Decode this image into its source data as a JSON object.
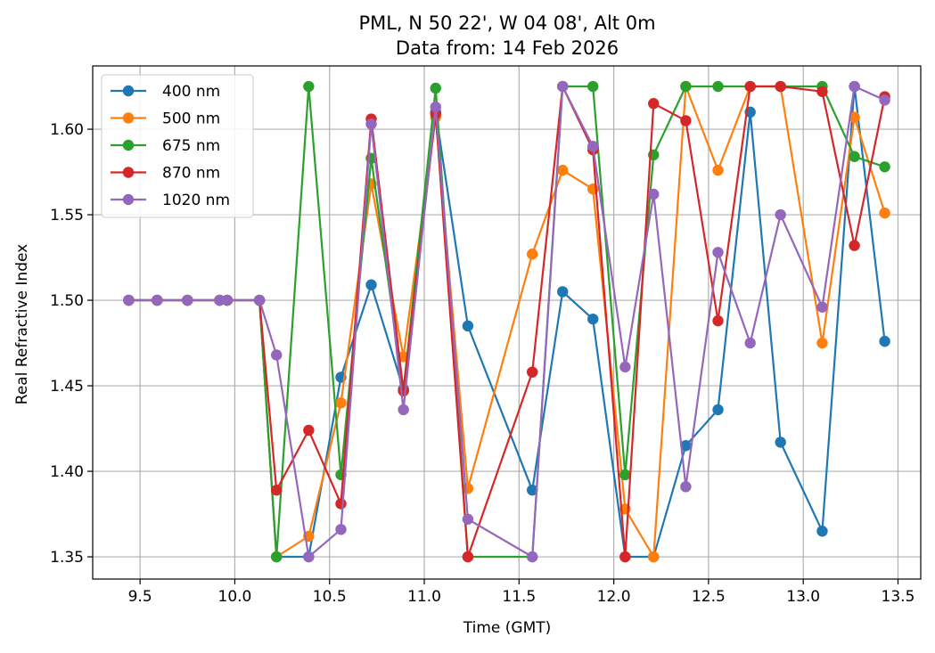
{
  "chart_data": {
    "type": "line",
    "title": "PML, N 50 22', W 04 08', Alt 0m",
    "subtitle": "Data from: 14 Feb 2026",
    "xlabel": "Time (GMT)",
    "ylabel": "Real Refractive Index",
    "xlim": [
      9.25,
      13.62
    ],
    "ylim": [
      1.337,
      1.637
    ],
    "xticks": [
      9.5,
      10.0,
      10.5,
      11.0,
      11.5,
      12.0,
      12.5,
      13.0,
      13.5
    ],
    "xtick_labels": [
      "9.5",
      "10.0",
      "10.5",
      "11.0",
      "11.5",
      "12.0",
      "12.5",
      "13.0",
      "13.5"
    ],
    "yticks": [
      1.35,
      1.4,
      1.45,
      1.5,
      1.55,
      1.6
    ],
    "ytick_labels": [
      "1.35",
      "1.40",
      "1.45",
      "1.50",
      "1.55",
      "1.60"
    ],
    "grid": true,
    "legend_position": "top-left",
    "x": [
      9.44,
      9.59,
      9.75,
      9.92,
      9.96,
      10.13,
      10.22,
      10.39,
      10.56,
      10.72,
      10.89,
      11.06,
      11.23,
      11.57,
      11.73,
      11.89,
      12.06,
      12.21,
      12.38,
      12.55,
      12.72,
      12.88,
      13.1,
      13.27,
      13.43
    ],
    "series": [
      {
        "name": "400 nm",
        "color": "#1f77b4",
        "values": [
          1.5,
          1.5,
          1.5,
          1.5,
          1.5,
          1.5,
          1.35,
          1.35,
          1.455,
          1.509,
          1.448,
          1.61,
          1.485,
          1.389,
          1.505,
          1.489,
          1.35,
          1.35,
          1.415,
          1.436,
          1.61,
          1.417,
          1.365,
          1.625,
          1.476
        ]
      },
      {
        "name": "500 nm",
        "color": "#ff7f0e",
        "values": [
          1.5,
          1.5,
          1.5,
          1.5,
          1.5,
          1.5,
          1.35,
          1.362,
          1.44,
          1.568,
          1.467,
          1.607,
          1.39,
          1.527,
          1.576,
          1.565,
          1.378,
          1.35,
          1.625,
          1.576,
          1.625,
          1.625,
          1.475,
          1.607,
          1.551
        ]
      },
      {
        "name": "675 nm",
        "color": "#2ca02c",
        "values": [
          1.5,
          1.5,
          1.5,
          1.5,
          1.5,
          1.5,
          1.35,
          1.625,
          1.398,
          1.583,
          1.447,
          1.624,
          1.35,
          1.35,
          1.625,
          1.625,
          1.398,
          1.585,
          1.625,
          1.625,
          1.625,
          1.625,
          1.625,
          1.584,
          1.578
        ]
      },
      {
        "name": "870 nm",
        "color": "#d62728",
        "values": [
          1.5,
          1.5,
          1.5,
          1.5,
          1.5,
          1.5,
          1.389,
          1.424,
          1.381,
          1.606,
          1.447,
          1.609,
          1.35,
          1.458,
          1.625,
          1.588,
          1.35,
          1.615,
          1.605,
          1.488,
          1.625,
          1.625,
          1.622,
          1.532,
          1.619
        ]
      },
      {
        "name": "1020 nm",
        "color": "#9467bd",
        "values": [
          1.5,
          1.5,
          1.5,
          1.5,
          1.5,
          1.5,
          1.468,
          1.35,
          1.366,
          1.603,
          1.436,
          1.613,
          1.372,
          1.35,
          1.625,
          1.59,
          1.461,
          1.562,
          1.391,
          1.528,
          1.475,
          1.55,
          1.496,
          1.625,
          1.617
        ]
      }
    ]
  }
}
